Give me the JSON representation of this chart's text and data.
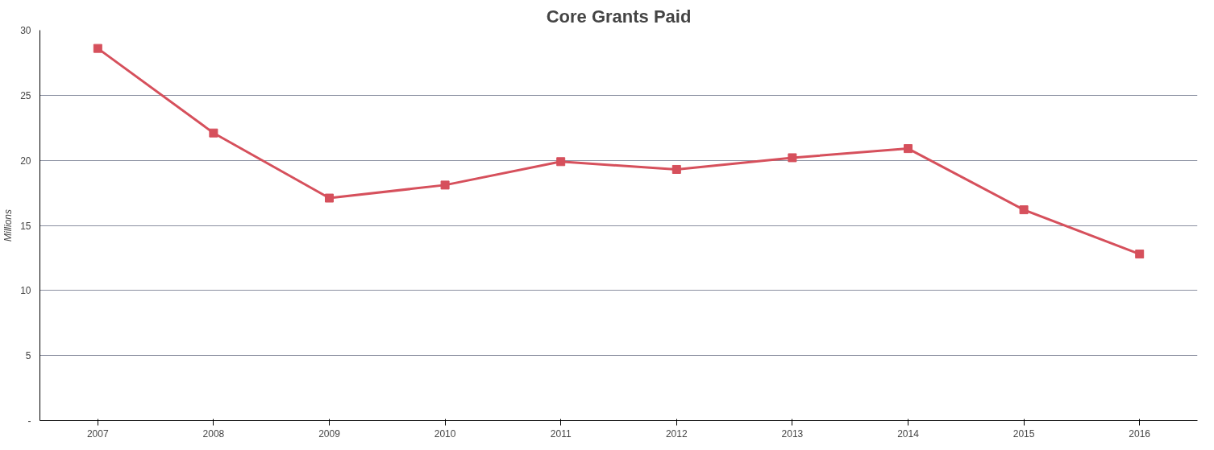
{
  "chart_data": {
    "type": "line",
    "title": "Core Grants Paid",
    "ylabel": "Millions",
    "categories": [
      "2007",
      "2008",
      "2009",
      "2010",
      "2011",
      "2012",
      "2013",
      "2014",
      "2015",
      "2016"
    ],
    "series": [
      {
        "color": "#d6505c",
        "values": [
          28.6,
          22.1,
          17.1,
          18.1,
          19.9,
          19.3,
          20.2,
          20.9,
          16.2,
          12.8
        ]
      }
    ],
    "ylim": [
      0,
      30
    ],
    "yticks": [
      {
        "value": 0,
        "label": "-"
      },
      5,
      10,
      15,
      20,
      25,
      30
    ],
    "grid": "y",
    "marker": "square",
    "line_style": "solid"
  }
}
